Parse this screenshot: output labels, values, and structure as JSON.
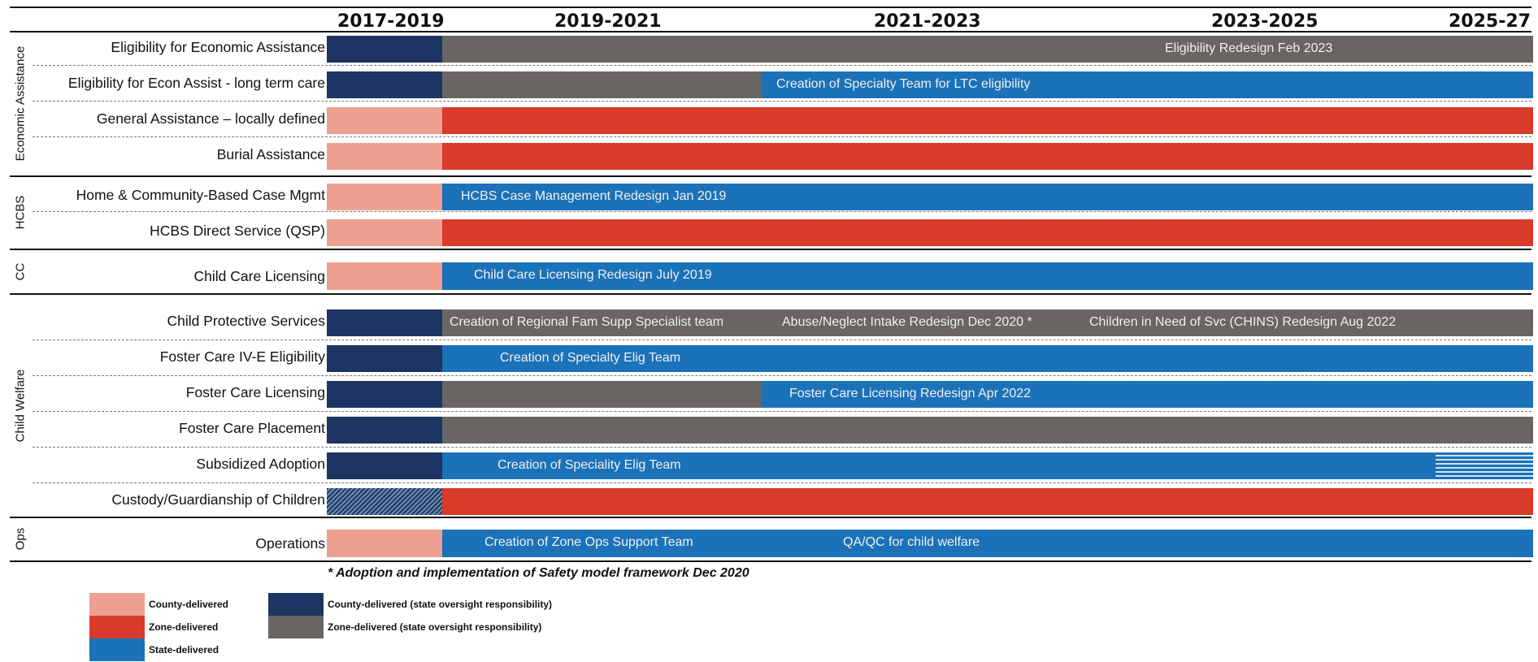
{
  "periods": [
    "2017-2019",
    "2019-2021",
    "2021-2023",
    "2023-2025",
    "2025-27"
  ],
  "colors": {
    "county": "#eda090",
    "zone": "#d83b2a",
    "state": "#1b72b8",
    "county_oversight": "#1c3562",
    "zone_oversight": "#686562"
  },
  "groups": [
    {
      "label": "Economic Assistance",
      "rows": [
        {
          "label": "Eligibility for Economic Assistance",
          "segments": [
            {
              "type": "county_oversight",
              "span": "2017-2019"
            },
            {
              "type": "zone_oversight",
              "span": "2019-2027",
              "text": "Eligibility Redesign Feb 2023"
            }
          ]
        },
        {
          "label": "Eligibility for Econ Assist - long term care",
          "segments": [
            {
              "type": "county_oversight",
              "span": "2017-2019"
            },
            {
              "type": "zone_oversight",
              "span": "2019-2021"
            },
            {
              "type": "state",
              "span": "2021-2027",
              "text": "Creation of Specialty Team for LTC eligibility"
            }
          ]
        },
        {
          "label": "General Assistance – locally defined",
          "segments": [
            {
              "type": "county",
              "span": "2017-2019"
            },
            {
              "type": "zone",
              "span": "2019-2027"
            }
          ]
        },
        {
          "label": "Burial Assistance",
          "segments": [
            {
              "type": "county",
              "span": "2017-2019"
            },
            {
              "type": "zone",
              "span": "2019-2027"
            }
          ]
        }
      ]
    },
    {
      "label": "HCBS",
      "rows": [
        {
          "label": "Home & Community-Based Case Mgmt",
          "segments": [
            {
              "type": "county",
              "span": "2017-2019"
            },
            {
              "type": "state",
              "span": "2019-2027",
              "text": "HCBS Case Management Redesign Jan 2019"
            }
          ]
        },
        {
          "label": "HCBS Direct Service (QSP)",
          "segments": [
            {
              "type": "county",
              "span": "2017-2019"
            },
            {
              "type": "zone",
              "span": "2019-2027"
            }
          ]
        }
      ]
    },
    {
      "label": "CC",
      "rows": [
        {
          "label": "Child Care Licensing",
          "segments": [
            {
              "type": "county",
              "span": "2017-2019"
            },
            {
              "type": "state",
              "span": "2019-2027",
              "text": "Child Care Licensing Redesign July 2019"
            }
          ]
        }
      ]
    },
    {
      "label": "Child Welfare",
      "rows": [
        {
          "label": "Child Protective Services",
          "segments": [
            {
              "type": "county_oversight",
              "span": "2017-2019"
            },
            {
              "type": "zone_oversight",
              "span": "2019-2027",
              "texts": [
                "Creation of Regional Fam Supp Specialist team",
                "Abuse/Neglect Intake Redesign Dec 2020 *",
                "Children in Need of Svc (CHINS) Redesign Aug 2022"
              ]
            }
          ]
        },
        {
          "label": "Foster Care IV-E Eligibility",
          "segments": [
            {
              "type": "county_oversight",
              "span": "2017-2019"
            },
            {
              "type": "state",
              "span": "2019-2027",
              "text": "Creation of Specialty Elig Team"
            }
          ]
        },
        {
          "label": "Foster Care Licensing",
          "segments": [
            {
              "type": "county_oversight",
              "span": "2017-2019"
            },
            {
              "type": "zone_oversight",
              "span": "2019-2021"
            },
            {
              "type": "state",
              "span": "2021-2027",
              "text": "Foster Care Licensing Redesign Apr 2022"
            }
          ]
        },
        {
          "label": "Foster Care Placement",
          "segments": [
            {
              "type": "county_oversight",
              "span": "2017-2019"
            },
            {
              "type": "zone_oversight",
              "span": "2019-2027"
            }
          ]
        },
        {
          "label": "Subsidized Adoption",
          "segments": [
            {
              "type": "county_oversight",
              "span": "2017-2019"
            },
            {
              "type": "state",
              "span": "2019-2027",
              "text": "Creation of Speciality Elig Team"
            }
          ]
        },
        {
          "label": "Custody/Guardianship of Children",
          "segments": [
            {
              "type": "county_oversight_hatched",
              "span": "2017-2019"
            },
            {
              "type": "zone",
              "span": "2019-2027"
            }
          ]
        }
      ]
    },
    {
      "label": "Ops",
      "rows": [
        {
          "label": "Operations",
          "segments": [
            {
              "type": "county",
              "span": "2017-2019"
            },
            {
              "type": "state",
              "span": "2019-2027",
              "texts": [
                "Creation of Zone Ops Support Team",
                "QA/QC for child welfare"
              ]
            }
          ]
        }
      ]
    }
  ],
  "footnote": "* Adoption and implementation of Safety model framework Dec 2020",
  "legend": [
    {
      "type": "county",
      "label": "County-delivered"
    },
    {
      "type": "zone",
      "label": "Zone-delivered"
    },
    {
      "type": "state",
      "label": "State-delivered"
    },
    {
      "type": "county_oversight",
      "label": "County-delivered (state oversight responsibility)"
    },
    {
      "type": "zone_oversight",
      "label": "Zone-delivered (state oversight responsibility)"
    }
  ]
}
